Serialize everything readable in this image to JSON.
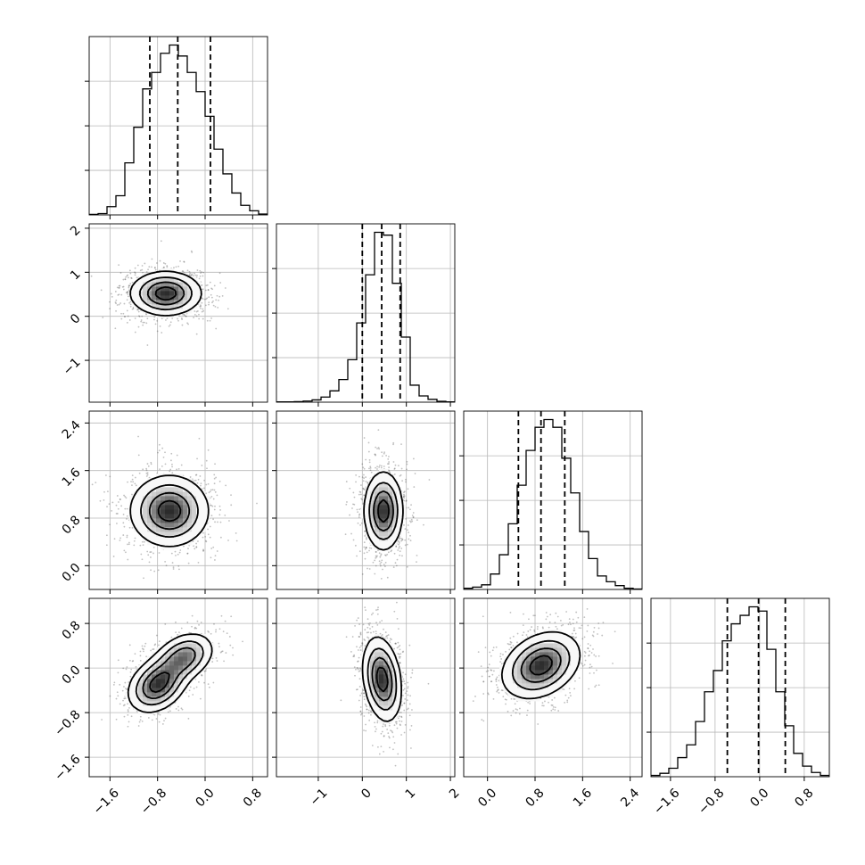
{
  "chart_data": {
    "type": "corner",
    "parameters": [
      {
        "range": [
          -1.95,
          1.05
        ],
        "ticks": [
          -1.6,
          -0.8,
          0.0,
          0.8
        ],
        "tick_labels": [
          "−1.6",
          "−0.8",
          "0.0",
          "0.8"
        ],
        "quantiles": [
          -0.93,
          -0.46,
          0.09
        ]
      },
      {
        "range": [
          -1.95,
          2.1
        ],
        "ticks": [
          -1,
          0,
          1,
          2
        ],
        "tick_labels": [
          "−1",
          "0",
          "1",
          "2"
        ],
        "quantiles": [
          -0.0,
          0.44,
          0.86
        ]
      },
      {
        "range": [
          -0.4,
          2.6
        ],
        "ticks": [
          0.0,
          0.8,
          1.6,
          2.4
        ],
        "tick_labels": [
          "0.0",
          "0.8",
          "1.6",
          "2.4"
        ],
        "quantiles": [
          0.52,
          0.9,
          1.3
        ]
      },
      {
        "range": [
          -1.95,
          1.25
        ],
        "ticks": [
          -1.6,
          -0.8,
          0.0,
          0.8
        ],
        "tick_labels": [
          "−1.6",
          "−0.8",
          "0.0",
          "0.8"
        ],
        "quantiles": [
          -0.58,
          -0.02,
          0.46
        ]
      }
    ],
    "histograms": [
      {
        "counts": [
          2,
          5,
          30,
          70,
          190,
          320,
          460,
          520,
          590,
          620,
          580,
          520,
          450,
          360,
          240,
          150,
          80,
          35,
          15,
          3
        ]
      },
      {
        "counts": [
          1,
          1,
          2,
          4,
          8,
          18,
          40,
          80,
          150,
          280,
          450,
          600,
          590,
          420,
          230,
          60,
          22,
          10,
          3,
          1
        ]
      },
      {
        "counts": [
          3,
          6,
          12,
          40,
          90,
          170,
          270,
          360,
          420,
          440,
          420,
          340,
          250,
          150,
          80,
          35,
          20,
          10,
          3,
          1
        ]
      },
      {
        "counts": [
          3,
          8,
          20,
          45,
          75,
          130,
          200,
          250,
          320,
          360,
          380,
          400,
          390,
          300,
          200,
          120,
          55,
          25,
          10,
          3
        ]
      }
    ],
    "pairs": [
      {
        "x": 0,
        "y": 1,
        "peaks": [
          {
            "x": -0.66,
            "y": 0.52,
            "sx": 0.3,
            "sy": 0.25,
            "rho": 0.0,
            "w": 1.0
          }
        ]
      },
      {
        "x": 0,
        "y": 2,
        "peaks": [
          {
            "x": -0.6,
            "y": 0.92,
            "sx": 0.33,
            "sy": 0.3,
            "rho": 0.0,
            "w": 1.0
          }
        ]
      },
      {
        "x": 1,
        "y": 2,
        "peaks": [
          {
            "x": 0.48,
            "y": 0.92,
            "sx": 0.22,
            "sy": 0.33,
            "rho": 0.0,
            "w": 1.0
          }
        ]
      },
      {
        "x": 0,
        "y": 3,
        "peaks": [
          {
            "x": -0.8,
            "y": -0.3,
            "sx": 0.25,
            "sy": 0.25,
            "rho": 0.3,
            "w": 1.0
          },
          {
            "x": -0.35,
            "y": 0.2,
            "sx": 0.25,
            "sy": 0.22,
            "rho": 0.3,
            "w": 0.8
          }
        ]
      },
      {
        "x": 1,
        "y": 3,
        "peaks": [
          {
            "x": 0.45,
            "y": -0.2,
            "sx": 0.22,
            "sy": 0.38,
            "rho": -0.25,
            "w": 1.0
          }
        ]
      },
      {
        "x": 2,
        "y": 3,
        "peaks": [
          {
            "x": 0.9,
            "y": 0.05,
            "sx": 0.33,
            "sy": 0.3,
            "rho": 0.3,
            "w": 1.0
          }
        ]
      }
    ],
    "grid": true
  }
}
